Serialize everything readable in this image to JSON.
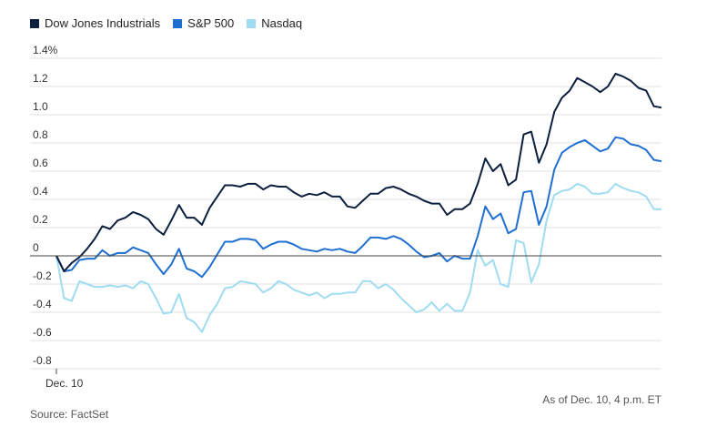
{
  "chart_data": {
    "type": "line",
    "title": "",
    "xlabel": "",
    "ylabel": "",
    "ylim": [
      -0.8,
      1.4
    ],
    "y_ticks": [
      "1.4%",
      "1.2",
      "1.0",
      "0.8",
      "0.6",
      "0.4",
      "0.2",
      "0",
      "-0.2",
      "-0.4",
      "-0.6",
      "-0.8"
    ],
    "y_tick_values": [
      1.4,
      1.2,
      1.0,
      0.8,
      0.6,
      0.4,
      0.2,
      0,
      -0.2,
      -0.4,
      -0.6,
      -0.8
    ],
    "x_tick_label": "Dec. 10",
    "grid": true,
    "legend_position": "top-left",
    "series": [
      {
        "name": "Dow Jones Industrials",
        "color": "#0b1f3f",
        "values": [
          0.0,
          -0.11,
          -0.05,
          -0.01,
          0.05,
          0.12,
          0.21,
          0.19,
          0.25,
          0.27,
          0.31,
          0.29,
          0.26,
          0.19,
          0.15,
          0.25,
          0.36,
          0.27,
          0.27,
          0.22,
          0.34,
          0.42,
          0.5,
          0.5,
          0.49,
          0.51,
          0.51,
          0.47,
          0.5,
          0.49,
          0.49,
          0.45,
          0.42,
          0.44,
          0.43,
          0.45,
          0.42,
          0.42,
          0.35,
          0.34,
          0.39,
          0.44,
          0.44,
          0.48,
          0.49,
          0.47,
          0.44,
          0.42,
          0.39,
          0.37,
          0.37,
          0.29,
          0.33,
          0.33,
          0.37,
          0.51,
          0.69,
          0.6,
          0.65,
          0.5,
          0.54,
          0.86,
          0.88,
          0.66,
          0.79,
          1.02,
          1.12,
          1.17,
          1.26,
          1.23,
          1.2,
          1.16,
          1.2,
          1.29,
          1.27,
          1.24,
          1.19,
          1.17,
          1.06,
          1.05
        ]
      },
      {
        "name": "S&P 500",
        "color": "#1f6fd1",
        "values": [
          0.0,
          -0.11,
          -0.1,
          -0.03,
          -0.02,
          -0.02,
          0.04,
          0.0,
          0.02,
          0.02,
          0.06,
          0.04,
          0.02,
          -0.06,
          -0.13,
          -0.06,
          0.05,
          -0.09,
          -0.11,
          -0.15,
          -0.08,
          0.01,
          0.1,
          0.1,
          0.12,
          0.12,
          0.11,
          0.05,
          0.08,
          0.1,
          0.1,
          0.08,
          0.05,
          0.04,
          0.03,
          0.05,
          0.04,
          0.05,
          0.03,
          0.02,
          0.07,
          0.13,
          0.13,
          0.12,
          0.14,
          0.12,
          0.08,
          0.03,
          -0.01,
          0.0,
          0.02,
          -0.04,
          0.0,
          -0.02,
          -0.02,
          0.14,
          0.35,
          0.26,
          0.3,
          0.16,
          0.19,
          0.45,
          0.46,
          0.22,
          0.35,
          0.61,
          0.73,
          0.77,
          0.8,
          0.82,
          0.78,
          0.74,
          0.76,
          0.84,
          0.83,
          0.79,
          0.78,
          0.75,
          0.68,
          0.67
        ]
      },
      {
        "name": "Nasdaq",
        "color": "#9fdcf2",
        "values": [
          0.0,
          -0.3,
          -0.32,
          -0.18,
          -0.2,
          -0.22,
          -0.22,
          -0.21,
          -0.22,
          -0.21,
          -0.23,
          -0.18,
          -0.2,
          -0.3,
          -0.41,
          -0.4,
          -0.27,
          -0.44,
          -0.47,
          -0.54,
          -0.42,
          -0.34,
          -0.23,
          -0.22,
          -0.18,
          -0.19,
          -0.2,
          -0.26,
          -0.23,
          -0.18,
          -0.2,
          -0.24,
          -0.26,
          -0.28,
          -0.26,
          -0.3,
          -0.27,
          -0.27,
          -0.26,
          -0.26,
          -0.18,
          -0.18,
          -0.23,
          -0.2,
          -0.24,
          -0.3,
          -0.35,
          -0.4,
          -0.38,
          -0.33,
          -0.39,
          -0.34,
          -0.39,
          -0.39,
          -0.26,
          0.04,
          -0.07,
          -0.03,
          -0.2,
          -0.22,
          0.11,
          0.09,
          -0.19,
          -0.06,
          0.25,
          0.43,
          0.46,
          0.47,
          0.51,
          0.49,
          0.44,
          0.44,
          0.45,
          0.51,
          0.48,
          0.46,
          0.45,
          0.42,
          0.33,
          0.33
        ]
      }
    ]
  },
  "notes": {
    "timestamp": "As of Dec. 10, 4 p.m. ET",
    "source": "Source: FactSet"
  }
}
